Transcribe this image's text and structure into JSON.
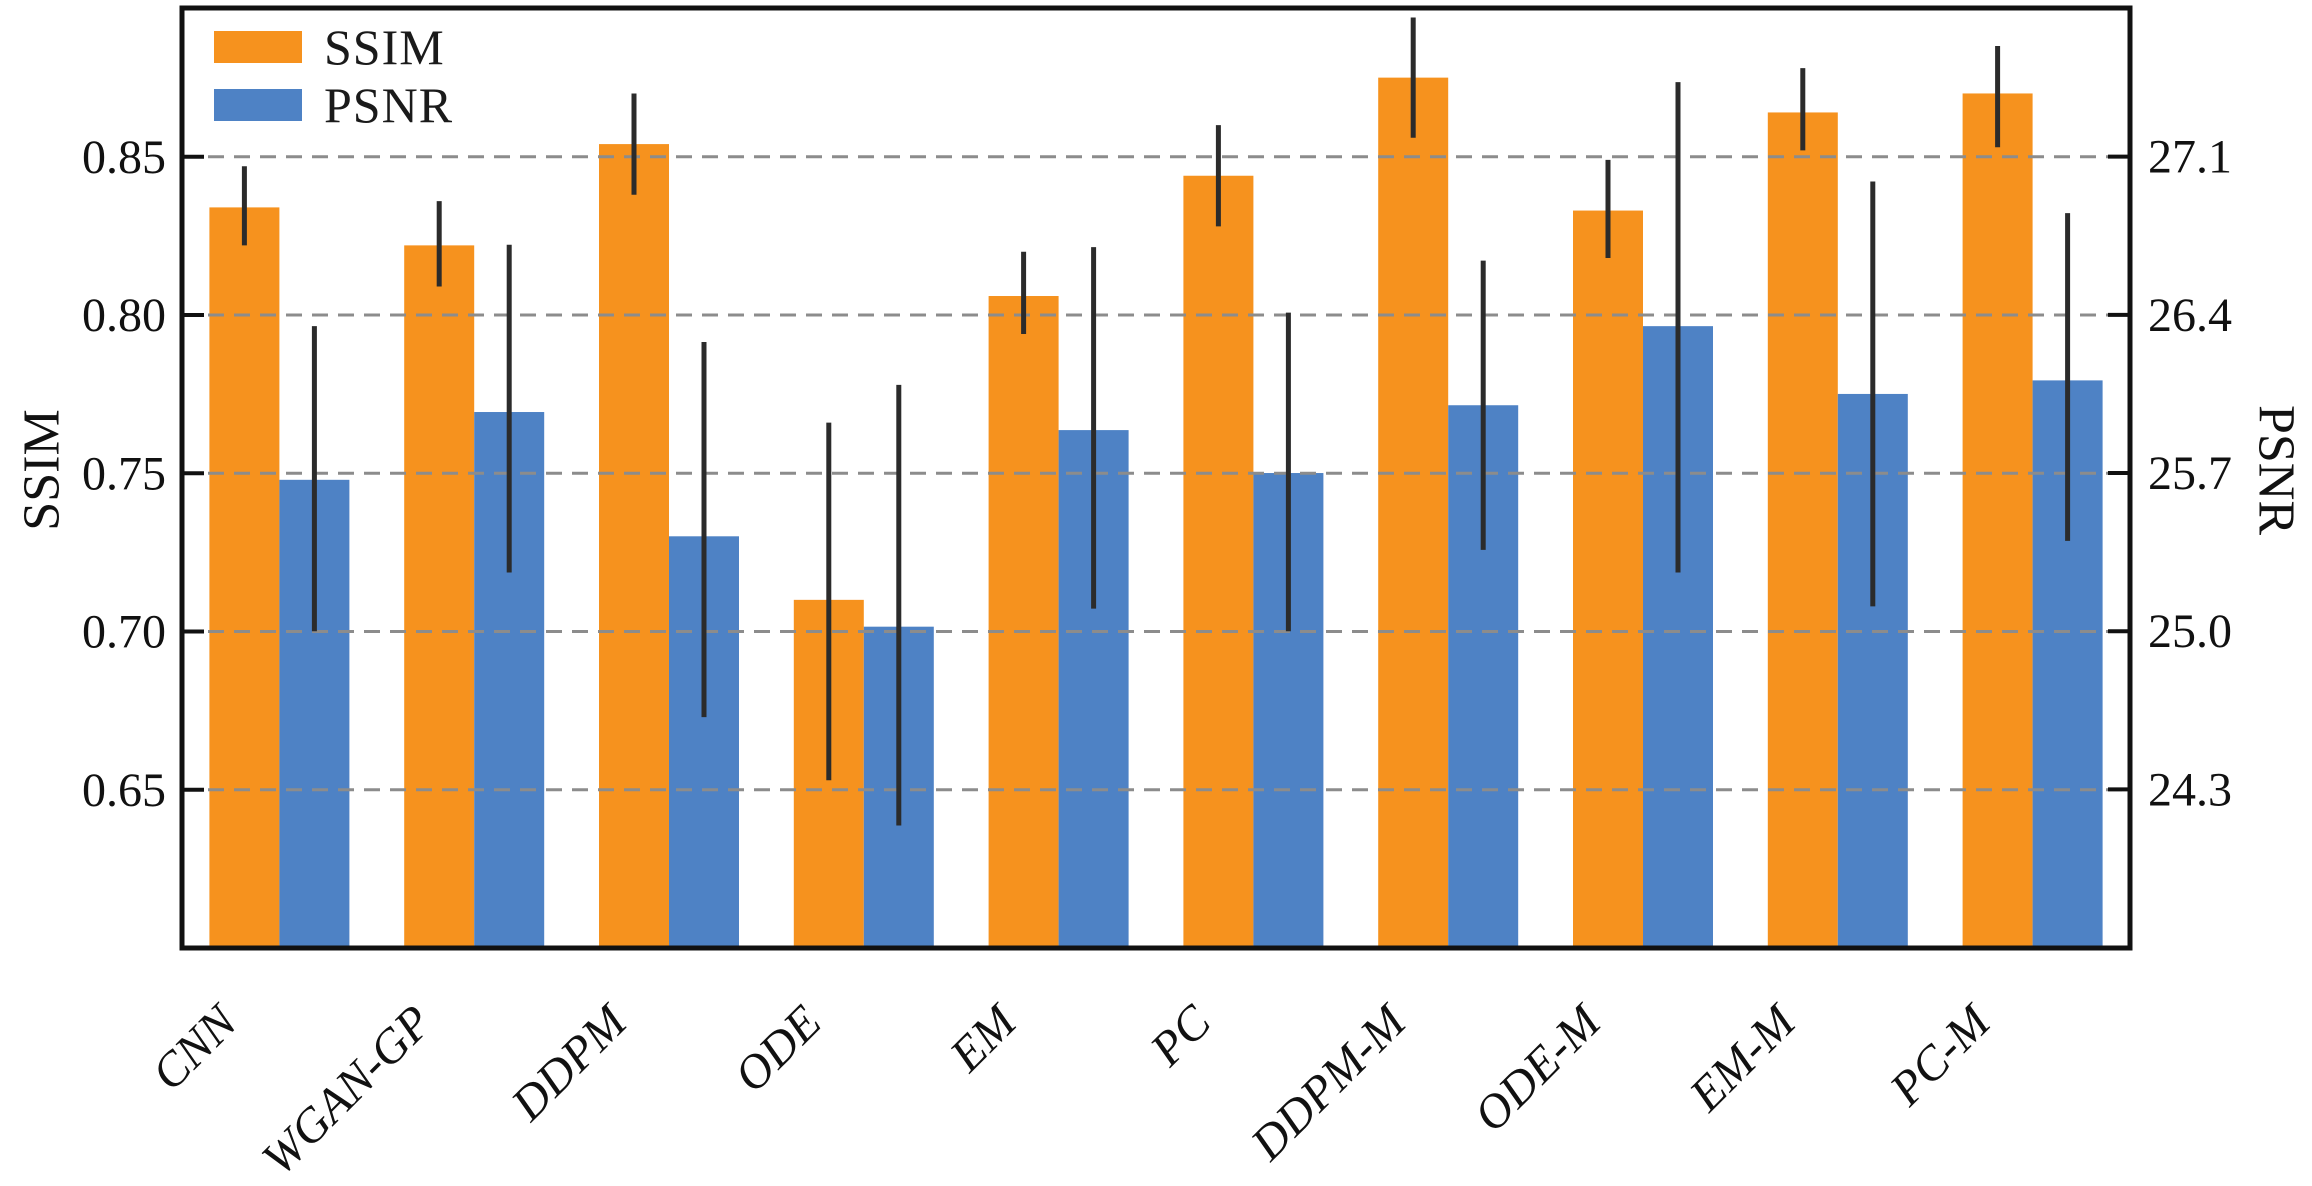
{
  "figure": {
    "background": "#ffffff"
  },
  "legend": {
    "items": [
      {
        "label": "SSIM",
        "color": "#F6921E"
      },
      {
        "label": "PSNR",
        "color": "#4E82C5"
      }
    ]
  },
  "chart_data": {
    "type": "bar",
    "title": "",
    "xlabel": "",
    "categories": [
      "CNN",
      "WGAN-GP",
      "DDPM",
      "ODE",
      "EM",
      "PC",
      "DDPM-M",
      "ODE-M",
      "EM-M",
      "PC-M"
    ],
    "series": [
      {
        "name": "SSIM",
        "axis": "left",
        "color": "#F6921E",
        "values": [
          0.834,
          0.822,
          0.854,
          0.71,
          0.806,
          0.844,
          0.875,
          0.833,
          0.864,
          0.87
        ],
        "err_low": [
          0.822,
          0.809,
          0.838,
          0.653,
          0.794,
          0.828,
          0.856,
          0.818,
          0.852,
          0.853
        ],
        "err_high": [
          0.847,
          0.836,
          0.87,
          0.766,
          0.82,
          0.86,
          0.894,
          0.849,
          0.878,
          0.885
        ]
      },
      {
        "name": "PSNR",
        "axis": "right",
        "color": "#4E82C5",
        "values": [
          25.67,
          25.97,
          25.42,
          25.02,
          25.89,
          25.7,
          26.0,
          26.35,
          26.05,
          26.11
        ],
        "err_low": [
          25.0,
          25.26,
          24.62,
          24.14,
          25.1,
          25.0,
          25.36,
          25.26,
          25.11,
          25.4
        ],
        "err_high": [
          26.35,
          26.71,
          26.28,
          26.09,
          26.7,
          26.41,
          26.64,
          27.43,
          26.99,
          26.85
        ]
      }
    ],
    "left_axis": {
      "label": "SSIM",
      "tick_labels": [
        "0.85",
        "0.80",
        "0.75",
        "0.70",
        "0.65"
      ],
      "tick_values": [
        0.85,
        0.8,
        0.75,
        0.7,
        0.65
      ],
      "range": [
        0.6,
        0.897
      ]
    },
    "right_axis": {
      "label": "PSNR",
      "tick_labels": [
        "27.1",
        "26.4",
        "25.7",
        "25.0",
        "24.3"
      ],
      "tick_values": [
        27.1,
        26.4,
        25.7,
        25.0,
        24.3
      ],
      "range": [
        23.598,
        27.758
      ]
    },
    "legend_position": "upper left",
    "grid": {
      "axis": "y",
      "style": "dashed",
      "color": "#8c8c8c",
      "on_top": true
    },
    "error_bars": {
      "color": "#2b2b2b"
    },
    "x_tick_rotation": 45,
    "x_tick_style": "italic"
  }
}
